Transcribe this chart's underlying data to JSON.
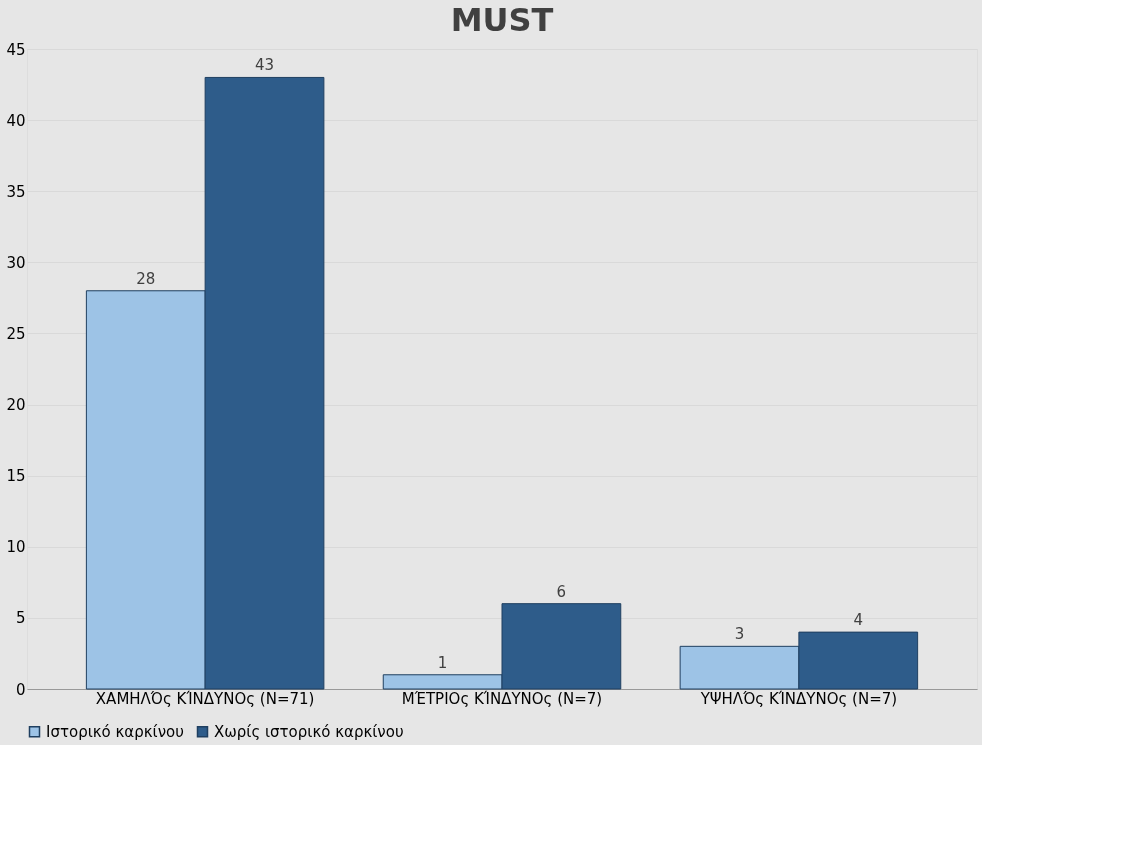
{
  "chart_data": {
    "type": "bar",
    "title": "MUST",
    "categories": [
      "ΧΑΜΗΛΌς ΚΊΝΔΥΝΟς (N=71)",
      "ΜΈΤΡΙΟς ΚΊΝΔΥΝΟς  (N=7)",
      "ΥΨΗΛΌς ΚΊΝΔΥΝΟς (N=7)"
    ],
    "series": [
      {
        "name": "Ιστορικό καρκίνου",
        "color": "#9dc3e6",
        "values": [
          28,
          1,
          3
        ]
      },
      {
        "name": "Χωρίς ιστορικό καρκίνου",
        "color": "#2e5c8a",
        "values": [
          43,
          6,
          4
        ]
      }
    ],
    "ylim": [
      0,
      45
    ],
    "yticks": [
      0,
      5,
      10,
      15,
      20,
      25,
      30,
      35,
      40,
      45
    ],
    "grid": "y",
    "legend": "bottom",
    "data_labels": true
  }
}
